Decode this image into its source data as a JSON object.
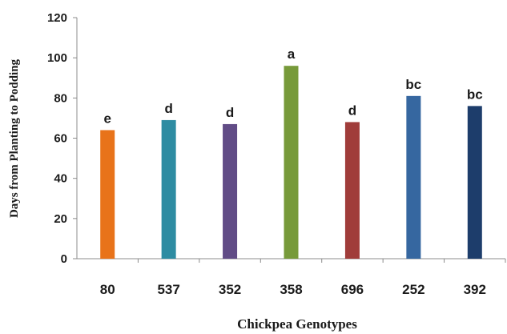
{
  "chart_data": {
    "type": "bar",
    "xlabel": "Chickpea Genotypes",
    "ylabel": "Days from Planting to Podding",
    "ylim": [
      0,
      120
    ],
    "yticks": [
      "0",
      "20",
      "40",
      "60",
      "80",
      "100",
      "120"
    ],
    "grid": false,
    "categories": [
      "80",
      "537",
      "352",
      "358",
      "696",
      "252",
      "392"
    ],
    "values": [
      64,
      69,
      67,
      96,
      68,
      81,
      76
    ],
    "significance_letters": [
      "e",
      "d",
      "d",
      "a",
      "d",
      "bc",
      "bc"
    ],
    "bar_colors": [
      "#E8731A",
      "#2E8CA2",
      "#614C86",
      "#779A3A",
      "#A03C3A",
      "#3667A0",
      "#1D3D6B"
    ]
  }
}
